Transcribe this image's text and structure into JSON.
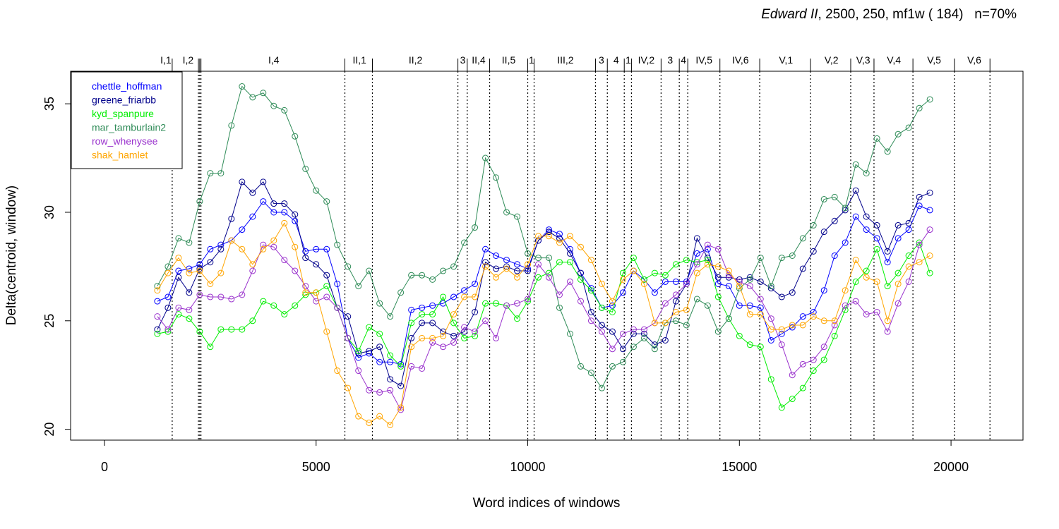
{
  "chart_data": {
    "type": "line",
    "title_italic": "Edward II",
    "title_rest": ", 2500, 250, mf1w ( 184)   n=70%",
    "xlabel": "Word indices of windows",
    "ylabel": "Delta(centroid, window)",
    "xlim": [
      -800,
      21700
    ],
    "ylim": [
      19.5,
      36.5
    ],
    "x_ticks": [
      0,
      5000,
      10000,
      15000,
      20000
    ],
    "y_ticks": [
      20,
      25,
      30,
      35
    ],
    "grid": false,
    "legend_position": "top-left",
    "acts": [
      {
        "label": "I,1",
        "start": 1250
      },
      {
        "label": "I,2",
        "start": 1650
      },
      {
        "label": "I,4",
        "start": 2300
      },
      {
        "label": "II,1",
        "start": 5700
      },
      {
        "label": "II,2",
        "start": 6350
      },
      {
        "label": "3",
        "start": 8350
      },
      {
        "label": "II,4",
        "start": 8580
      },
      {
        "label": "II,5",
        "start": 9100
      },
      {
        "label": "1",
        "start": 10000
      },
      {
        "label": "III,2",
        "start": 10180
      },
      {
        "label": "3",
        "start": 11600
      },
      {
        "label": "4",
        "start": 11880
      },
      {
        "label": "1",
        "start": 12300
      },
      {
        "label": "IV,2",
        "start": 12450
      },
      {
        "label": "3",
        "start": 13150
      },
      {
        "label": "4",
        "start": 13580
      },
      {
        "label": "IV,5",
        "start": 13780
      },
      {
        "label": "IV,6",
        "start": 14550
      },
      {
        "label": "V,1",
        "start": 15500
      },
      {
        "label": "V,2",
        "start": 16700
      },
      {
        "label": "V,3",
        "start": 17650
      },
      {
        "label": "V,4",
        "start": 18200
      },
      {
        "label": "V,5",
        "start": 19100
      },
      {
        "label": "V,6",
        "start": 20100
      }
    ],
    "act_boundaries": [
      1600,
      2220,
      2250,
      2280,
      5680,
      6330,
      8350,
      8570,
      9100,
      10000,
      10150,
      11600,
      11880,
      12280,
      12450,
      13150,
      13580,
      13780,
      14540,
      15480,
      16680,
      17630,
      18180,
      19100,
      20080,
      20920
    ],
    "x": [
      1250,
      1500,
      1750,
      2000,
      2250,
      2500,
      2750,
      3000,
      3250,
      3500,
      3750,
      4000,
      4250,
      4500,
      4750,
      5000,
      5250,
      5500,
      5750,
      6000,
      6250,
      6500,
      6750,
      7000,
      7250,
      7500,
      7750,
      8000,
      8250,
      8500,
      8750,
      9000,
      9250,
      9500,
      9750,
      10000,
      10250,
      10500,
      10750,
      11000,
      11250,
      11500,
      11750,
      12000,
      12250,
      12500,
      12750,
      13000,
      13250,
      13500,
      13750,
      14000,
      14250,
      14500,
      14750,
      15000,
      15250,
      15500,
      15750,
      16000,
      16250,
      16500,
      16750,
      17000,
      17250,
      17500,
      17750,
      18000,
      18250,
      18500,
      18750,
      19000,
      19250,
      19500
    ],
    "series": [
      {
        "name": "chettle_hoffman",
        "color": "#0000ff",
        "values": [
          25.9,
          26.1,
          27.3,
          27.4,
          27.6,
          28.3,
          28.5,
          28.7,
          29.2,
          29.8,
          30.5,
          30.0,
          30.0,
          29.6,
          28.2,
          28.3,
          28.3,
          26.7,
          24.2,
          23.3,
          23.5,
          23.1,
          23.1,
          23.0,
          25.5,
          25.6,
          25.7,
          25.8,
          26.1,
          26.4,
          26.7,
          28.3,
          28.0,
          27.8,
          27.6,
          27.4,
          28.7,
          29.2,
          29.0,
          28.3,
          27.2,
          26.5,
          25.6,
          25.7,
          26.3,
          27.3,
          26.9,
          26.3,
          26.8,
          26.8,
          26.8,
          28.1,
          28.3,
          26.7,
          26.6,
          25.7,
          25.7,
          25.6,
          24.1,
          24.4,
          24.7,
          25.2,
          25.4,
          26.4,
          28.0,
          28.6,
          29.8,
          29.2,
          28.8,
          27.7,
          28.8,
          29.2,
          30.3,
          30.1
        ]
      },
      {
        "name": "greene_friarbb",
        "color": "#00008b",
        "values": [
          24.6,
          25.6,
          27.0,
          26.3,
          27.4,
          27.7,
          28.3,
          29.7,
          31.4,
          30.9,
          31.4,
          30.4,
          30.4,
          29.9,
          27.9,
          27.6,
          27.1,
          25.6,
          25.2,
          23.5,
          23.6,
          23.8,
          22.3,
          22.0,
          24.2,
          24.9,
          24.9,
          24.5,
          24.3,
          24.5,
          25.4,
          27.7,
          27.4,
          27.5,
          27.3,
          27.3,
          28.7,
          29.1,
          28.8,
          28.1,
          27.2,
          25.4,
          24.8,
          24.5,
          23.7,
          24.4,
          24.4,
          23.9,
          24.1,
          25.9,
          26.7,
          28.8,
          27.9,
          27.0,
          27.0,
          26.9,
          27.0,
          26.8,
          26.5,
          26.1,
          26.3,
          27.4,
          28.2,
          29.1,
          29.6,
          30.1,
          31.0,
          29.8,
          29.4,
          28.2,
          29.4,
          29.5,
          30.7,
          30.9
        ]
      },
      {
        "name": "kyd_spanpure",
        "color": "#00ee00",
        "values": [
          24.4,
          24.5,
          25.3,
          25.1,
          24.5,
          23.8,
          24.6,
          24.6,
          24.6,
          25.0,
          25.9,
          25.7,
          25.3,
          25.7,
          26.2,
          26.3,
          26.6,
          25.6,
          24.2,
          23.6,
          24.7,
          24.4,
          23.4,
          22.9,
          24.9,
          25.3,
          25.3,
          26.1,
          24.9,
          24.2,
          24.3,
          25.8,
          25.8,
          25.7,
          25.1,
          25.9,
          27.0,
          27.2,
          27.7,
          27.7,
          26.9,
          26.4,
          25.6,
          25.4,
          27.2,
          27.9,
          26.9,
          27.2,
          27.1,
          27.6,
          27.8,
          27.7,
          27.8,
          26.1,
          25.1,
          24.3,
          23.9,
          23.8,
          22.3,
          21.0,
          21.4,
          21.9,
          22.7,
          23.2,
          24.3,
          25.5,
          26.8,
          27.3,
          28.3,
          26.6,
          27.2,
          28.0,
          28.6,
          27.2
        ]
      },
      {
        "name": "mar_tamburlain2",
        "color": "#2e8b57",
        "values": [
          26.6,
          27.5,
          28.8,
          28.6,
          30.5,
          31.8,
          31.8,
          34.0,
          35.8,
          35.3,
          35.5,
          34.9,
          34.7,
          33.5,
          32.0,
          31.0,
          30.5,
          28.5,
          27.5,
          26.6,
          27.3,
          25.8,
          25.2,
          26.3,
          27.1,
          27.1,
          26.9,
          27.3,
          27.5,
          28.6,
          29.3,
          32.5,
          31.6,
          30.0,
          29.8,
          28.1,
          27.9,
          27.9,
          25.6,
          24.4,
          22.9,
          22.6,
          21.9,
          22.9,
          23.1,
          23.8,
          24.2,
          23.7,
          24.9,
          25.0,
          24.8,
          26.0,
          25.7,
          24.5,
          25.1,
          26.5,
          26.9,
          27.9,
          26.6,
          27.9,
          28.0,
          28.8,
          29.4,
          30.6,
          30.7,
          30.2,
          32.2,
          31.8,
          33.4,
          32.8,
          33.6,
          33.9,
          34.8,
          35.2
        ]
      },
      {
        "name": "row_whenysee",
        "color": "#9a32cd",
        "values": [
          25.2,
          24.6,
          25.6,
          25.5,
          26.2,
          26.1,
          26.1,
          26.0,
          26.2,
          27.3,
          28.5,
          28.4,
          27.8,
          27.3,
          26.6,
          25.9,
          26.1,
          25.6,
          24.2,
          22.7,
          21.8,
          21.7,
          21.8,
          20.9,
          22.9,
          22.8,
          24.0,
          23.8,
          24.0,
          24.7,
          24.5,
          25.0,
          24.2,
          25.7,
          25.8,
          26.0,
          27.6,
          27.0,
          26.2,
          26.8,
          25.9,
          25.0,
          24.5,
          23.7,
          24.4,
          24.6,
          24.6,
          24.9,
          25.8,
          26.2,
          26.7,
          27.6,
          28.5,
          28.3,
          27.1,
          26.8,
          26.6,
          26.0,
          25.1,
          23.9,
          22.5,
          23.0,
          23.2,
          23.8,
          24.8,
          25.7,
          25.9,
          25.3,
          25.4,
          24.5,
          25.8,
          26.8,
          28.5,
          29.2
        ]
      },
      {
        "name": "shak_hamlet",
        "color": "#ffa500",
        "values": [
          26.4,
          27.2,
          27.9,
          27.2,
          27.3,
          26.7,
          27.2,
          28.7,
          28.3,
          27.6,
          28.3,
          28.7,
          29.5,
          28.4,
          26.3,
          26.3,
          24.5,
          22.7,
          21.9,
          20.6,
          20.3,
          20.6,
          20.2,
          21.0,
          23.8,
          24.2,
          24.2,
          24.3,
          25.3,
          26.1,
          26.1,
          27.5,
          27.0,
          27.4,
          27.0,
          27.6,
          28.9,
          28.9,
          28.6,
          28.9,
          28.4,
          27.8,
          26.7,
          25.9,
          26.9,
          27.3,
          26.7,
          24.9,
          24.9,
          25.4,
          25.5,
          27.2,
          27.6,
          27.5,
          27.3,
          26.6,
          25.3,
          25.3,
          24.6,
          24.6,
          24.8,
          24.8,
          25.2,
          25.0,
          25.0,
          26.4,
          27.8,
          27.0,
          26.8,
          25.0,
          26.7,
          27.5,
          27.7,
          28.0
        ]
      }
    ]
  }
}
